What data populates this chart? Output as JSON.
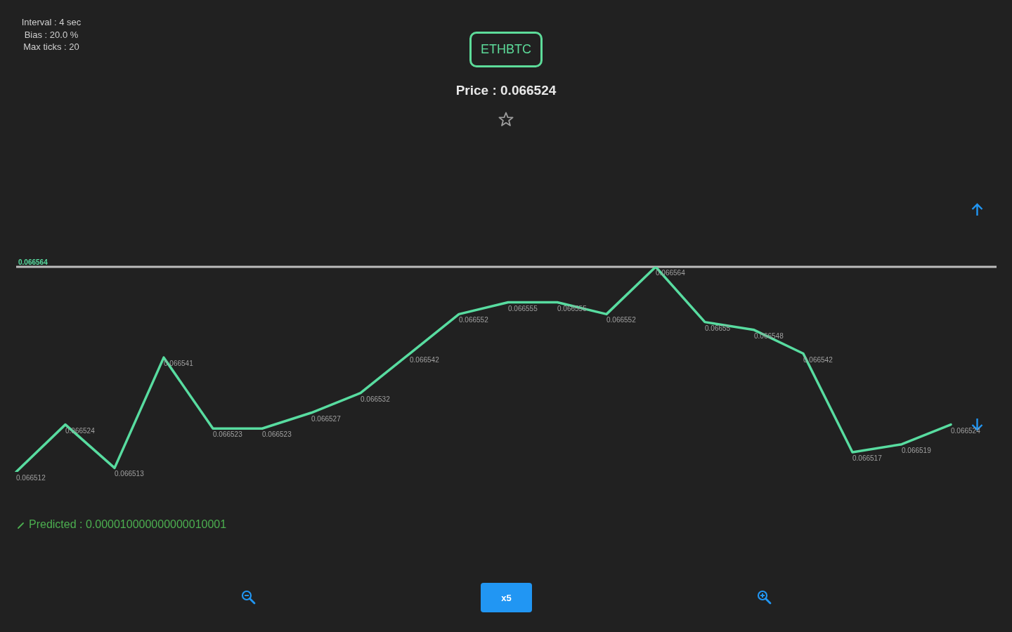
{
  "chart_data": {
    "type": "line",
    "title": "ETHBTC",
    "subtitle": "Price : 0.066524",
    "annotations": [
      "Interval : 4 sec",
      "Bias : 20.0 %",
      "Max ticks : 20",
      "Predicted : 0.000010000000000010001",
      "x5"
    ],
    "categories": [
      null,
      null,
      null,
      null,
      null,
      null,
      null,
      null,
      null,
      null,
      null,
      null,
      null,
      null,
      null,
      null,
      null,
      null,
      null,
      null
    ],
    "series": [
      {
        "color": "#58dca0",
        "values": [
          0.066512,
          0.066524,
          0.066513,
          0.066541,
          0.066523,
          0.066523,
          0.066527,
          0.066532,
          0.066542,
          0.066552,
          0.066555,
          0.066555,
          0.066552,
          0.066564,
          0.06655,
          0.066548,
          0.066542,
          0.066517,
          0.066519,
          0.066524
        ]
      }
    ],
    "ref_lines": [
      {
        "axis": "y",
        "value": 0.066564,
        "label": "0.066564",
        "color": "#bdbdbd"
      }
    ],
    "data_labels": true,
    "tick_labels": false
  }
}
